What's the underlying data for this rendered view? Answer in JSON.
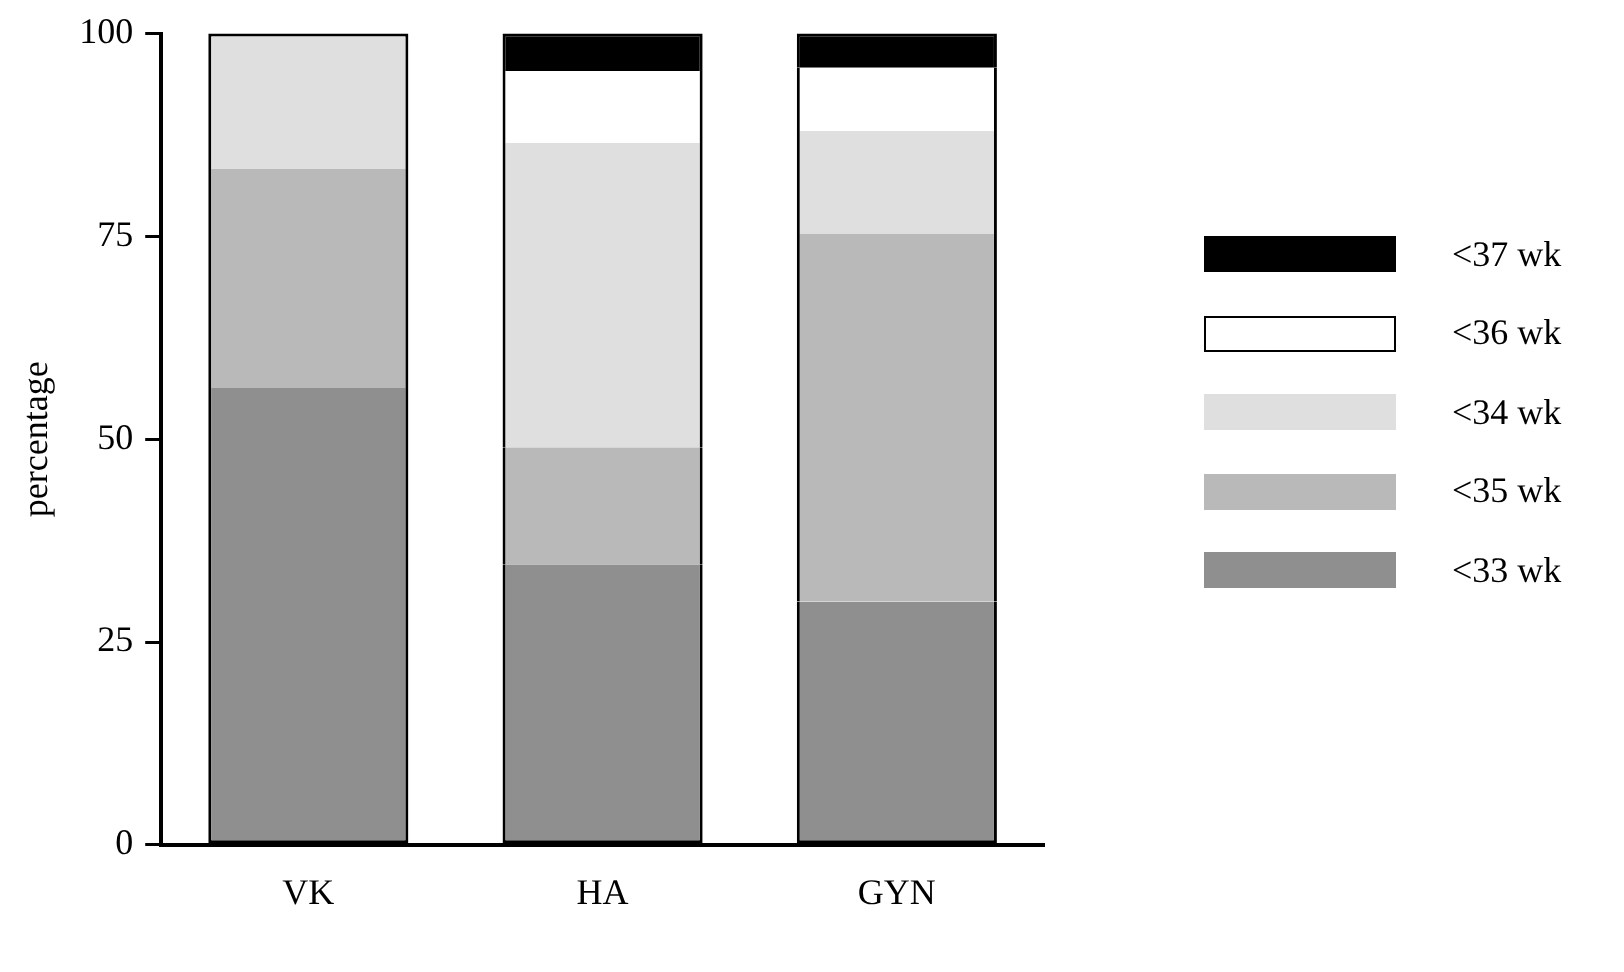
{
  "chart_data": {
    "type": "bar",
    "ylabel": "percentage",
    "categories": [
      "VK",
      "HA",
      "GYN"
    ],
    "stacked": true,
    "series": [
      {
        "name": "<33 wk",
        "color": "#8f8f8f",
        "values": [
          56.3,
          34.6,
          30.0
        ]
      },
      {
        "name": "<35 wk",
        "color": "#b9b9b9",
        "values": [
          27.0,
          14.4,
          45.3
        ]
      },
      {
        "name": "<34 wk",
        "color": "#dfdfdf",
        "values": [
          16.7,
          37.5,
          12.7
        ]
      },
      {
        "name": "<36 wk",
        "color": "#ffffff",
        "values": [
          0,
          8.9,
          7.8
        ]
      },
      {
        "name": "<37 wk",
        "color": "#000000",
        "values": [
          0,
          4.6,
          4.2
        ]
      }
    ],
    "ylim": [
      0,
      100
    ],
    "yticks": [
      0,
      25,
      50,
      75,
      100
    ],
    "grid": false,
    "legend": "right"
  }
}
